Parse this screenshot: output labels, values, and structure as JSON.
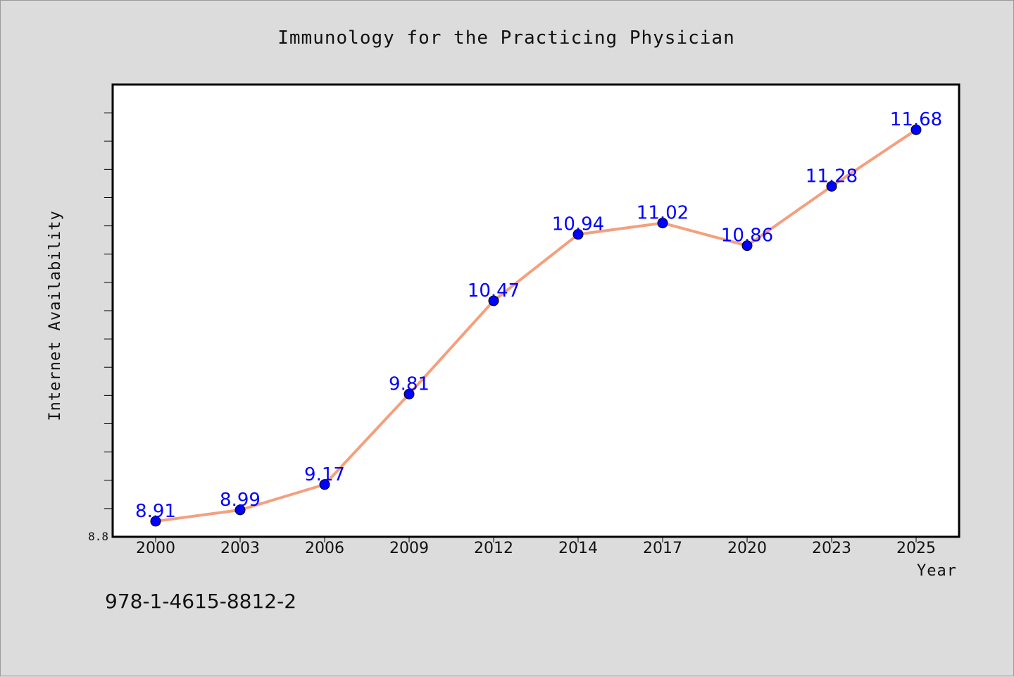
{
  "chart_data": {
    "type": "line",
    "title": "Immunology for the Practicing Physician",
    "xlabel": "Year",
    "ylabel": "Internet Availability",
    "categories": [
      "2000",
      "2003",
      "2006",
      "2009",
      "2012",
      "2014",
      "2017",
      "2020",
      "2023",
      "2025"
    ],
    "series": [
      {
        "values": [
          8.91,
          8.99,
          9.17,
          9.81,
          10.47,
          10.94,
          11.02,
          10.86,
          11.28,
          11.68
        ],
        "color": "#f4a07e",
        "marker_color": "#0000ff"
      }
    ],
    "ylim": [
      8.8,
      12.0
    ],
    "yticks_labeled": [
      "8.8"
    ],
    "grid": false,
    "legend": "none",
    "data_labels": true
  },
  "footer": {
    "isbn": "978-1-4615-8812-2"
  },
  "colors": {
    "background": "#dcdcdc",
    "plot_background": "#ffffff",
    "line": "#f4a07e",
    "marker": "#0000ff",
    "data_label": "#0000ff"
  }
}
